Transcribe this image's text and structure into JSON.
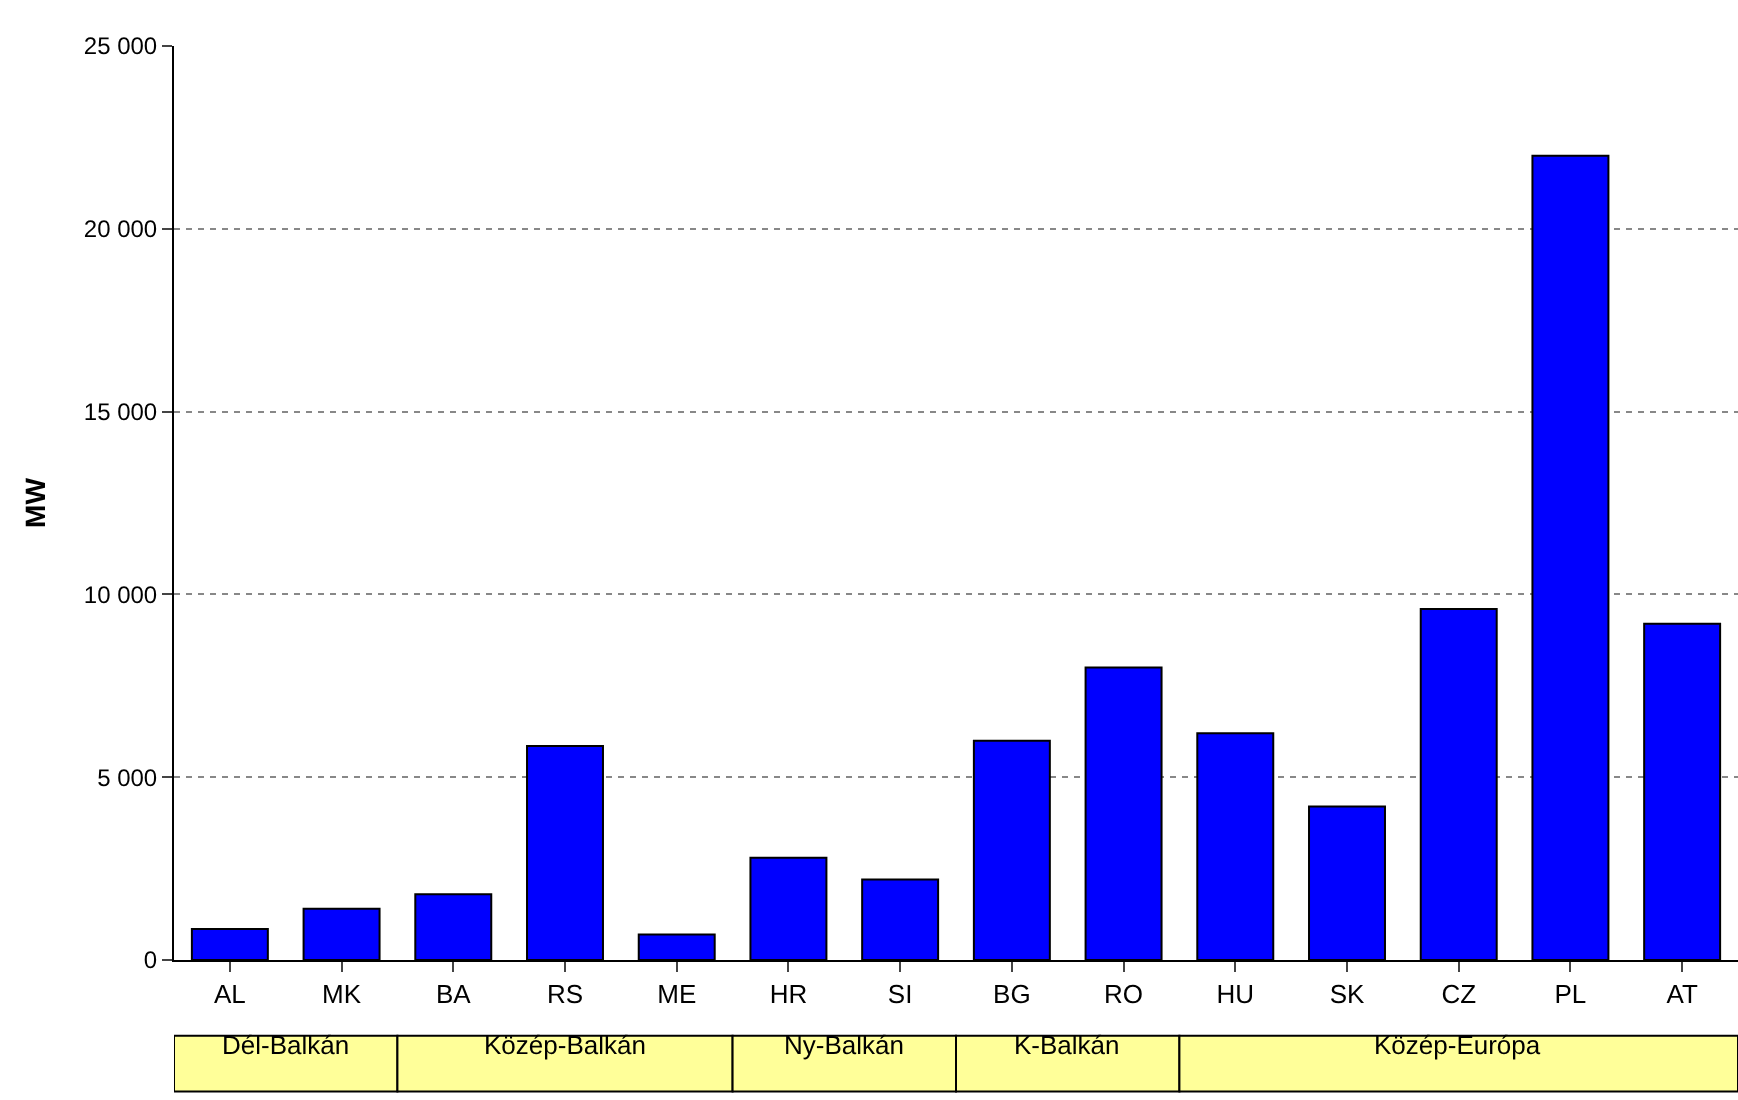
{
  "chart_data": {
    "type": "bar",
    "ylabel": "MW",
    "categories": [
      "AL",
      "MK",
      "BA",
      "RS",
      "ME",
      "HR",
      "SI",
      "BG",
      "RO",
      "HU",
      "SK",
      "CZ",
      "PL",
      "AT"
    ],
    "values": [
      850,
      1400,
      1800,
      5850,
      700,
      2800,
      2200,
      6000,
      8000,
      6200,
      4200,
      9600,
      22000,
      9200
    ],
    "color": "#0000ff",
    "ylim": [
      0,
      25000
    ],
    "yticks": [
      {
        "value": 0,
        "label": "0"
      },
      {
        "value": 5000,
        "label": "5 000"
      },
      {
        "value": 10000,
        "label": "10 000"
      },
      {
        "value": 15000,
        "label": "15 000"
      },
      {
        "value": 20000,
        "label": "20 000"
      },
      {
        "value": 25000,
        "label": "25 000"
      }
    ],
    "grid": "y",
    "annotations": [
      "Dél-Balkán",
      "Közép-Balkán",
      "Ny-Balkán",
      "K-Balkán",
      "Közép-Európa"
    ]
  }
}
